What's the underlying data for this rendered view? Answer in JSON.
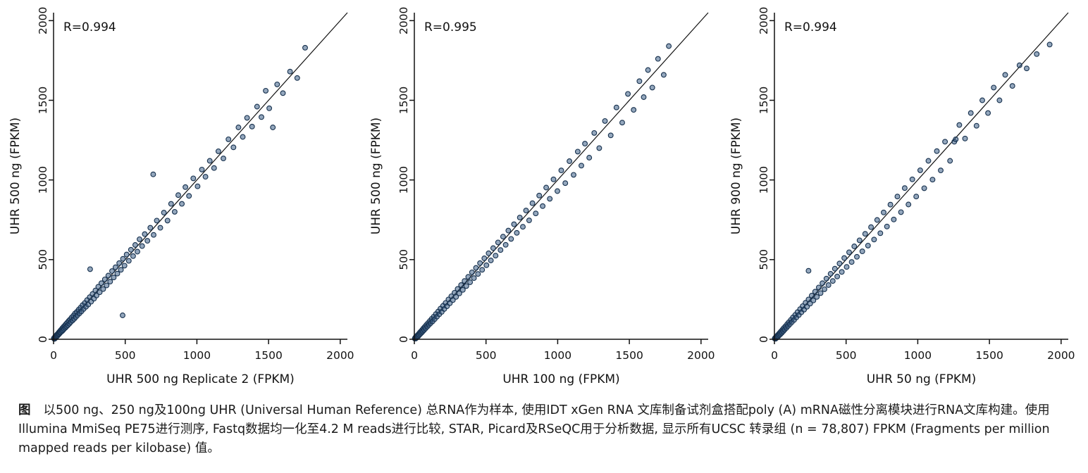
{
  "theme": {
    "point_fill": "#3c5f86",
    "point_stroke": "#16304d",
    "axis_color": "#111111",
    "background": "#ffffff"
  },
  "caption": {
    "label": "图",
    "text": "以500 ng、250 ng及100ng UHR (Universal Human Reference) 总RNA作为样本, 使用IDT xGen RNA 文库制备试剂盒搭配poly (A) mRNA磁性分离模块进行RNA文库构建。使用Illumina MmiSeq PE75进行测序, Fastq数据均一化至4.2 M reads进行比较, STAR, Picard及RSeQC用于分析数据, 显示所有UCSC 转录组 (n = 78,807) FPKM (Fragments per million mapped reads per kilobase) 值。"
  },
  "chart_data": [
    {
      "type": "scatter",
      "r_label": "R=0.994",
      "xlabel": "UHR 500 ng Replicate 2 (FPKM)",
      "ylabel": "UHR 500 ng (FPKM)",
      "xlim": [
        0,
        2050
      ],
      "ylim": [
        0,
        2050
      ],
      "ticks": [
        0,
        500,
        1000,
        1500,
        2000
      ],
      "diagonal": true,
      "points": [
        [
          2,
          6
        ],
        [
          5,
          2
        ],
        [
          8,
          12
        ],
        [
          10,
          5
        ],
        [
          12,
          18
        ],
        [
          15,
          10
        ],
        [
          18,
          22
        ],
        [
          20,
          15
        ],
        [
          22,
          28
        ],
        [
          25,
          20
        ],
        [
          28,
          33
        ],
        [
          30,
          24
        ],
        [
          33,
          38
        ],
        [
          35,
          30
        ],
        [
          38,
          44
        ],
        [
          40,
          34
        ],
        [
          43,
          48
        ],
        [
          45,
          40
        ],
        [
          48,
          55
        ],
        [
          50,
          44
        ],
        [
          55,
          62
        ],
        [
          58,
          50
        ],
        [
          62,
          70
        ],
        [
          65,
          56
        ],
        [
          70,
          78
        ],
        [
          73,
          64
        ],
        [
          78,
          86
        ],
        [
          82,
          72
        ],
        [
          86,
          95
        ],
        [
          90,
          80
        ],
        [
          95,
          104
        ],
        [
          100,
          88
        ],
        [
          105,
          115
        ],
        [
          110,
          98
        ],
        [
          115,
          124
        ],
        [
          120,
          108
        ],
        [
          126,
          136
        ],
        [
          132,
          118
        ],
        [
          138,
          148
        ],
        [
          144,
          128
        ],
        [
          150,
          162
        ],
        [
          156,
          140
        ],
        [
          162,
          172
        ],
        [
          168,
          152
        ],
        [
          175,
          186
        ],
        [
          182,
          164
        ],
        [
          188,
          198
        ],
        [
          195,
          176
        ],
        [
          202,
          214
        ],
        [
          210,
          190
        ],
        [
          218,
          228
        ],
        [
          226,
          204
        ],
        [
          234,
          246
        ],
        [
          242,
          218
        ],
        [
          252,
          264
        ],
        [
          262,
          236
        ],
        [
          272,
          284
        ],
        [
          282,
          255
        ],
        [
          292,
          306
        ],
        [
          300,
          275
        ],
        [
          255,
          440
        ],
        [
          312,
          330
        ],
        [
          322,
          295
        ],
        [
          334,
          352
        ],
        [
          346,
          315
        ],
        [
          358,
          376
        ],
        [
          370,
          338
        ],
        [
          382,
          400
        ],
        [
          395,
          362
        ],
        [
          408,
          428
        ],
        [
          420,
          388
        ],
        [
          432,
          452
        ],
        [
          445,
          412
        ],
        [
          458,
          478
        ],
        [
          470,
          436
        ],
        [
          482,
          150
        ],
        [
          484,
          505
        ],
        [
          495,
          462
        ],
        [
          510,
          532
        ],
        [
          525,
          492
        ],
        [
          540,
          562
        ],
        [
          555,
          522
        ],
        [
          570,
          592
        ],
        [
          585,
          550
        ],
        [
          600,
          628
        ],
        [
          618,
          585
        ],
        [
          636,
          660
        ],
        [
          655,
          618
        ],
        [
          675,
          700
        ],
        [
          695,
          1035
        ],
        [
          698,
          655
        ],
        [
          720,
          745
        ],
        [
          745,
          700
        ],
        [
          770,
          795
        ],
        [
          795,
          745
        ],
        [
          820,
          850
        ],
        [
          845,
          800
        ],
        [
          870,
          905
        ],
        [
          895,
          850
        ],
        [
          920,
          955
        ],
        [
          945,
          900
        ],
        [
          975,
          1010
        ],
        [
          1005,
          960
        ],
        [
          1035,
          1065
        ],
        [
          1060,
          1020
        ],
        [
          1090,
          1120
        ],
        [
          1120,
          1075
        ],
        [
          1150,
          1180
        ],
        [
          1185,
          1135
        ],
        [
          1220,
          1255
        ],
        [
          1255,
          1205
        ],
        [
          1290,
          1330
        ],
        [
          1320,
          1270
        ],
        [
          1350,
          1390
        ],
        [
          1385,
          1335
        ],
        [
          1420,
          1460
        ],
        [
          1450,
          1395
        ],
        [
          1480,
          1560
        ],
        [
          1505,
          1450
        ],
        [
          1530,
          1330
        ],
        [
          1560,
          1600
        ],
        [
          1600,
          1545
        ],
        [
          1650,
          1680
        ],
        [
          1700,
          1640
        ],
        [
          1755,
          1830
        ]
      ]
    },
    {
      "type": "scatter",
      "r_label": "R=0.995",
      "xlabel": "UHR 100 ng (FPKM)",
      "ylabel": "UHR 500 ng (FPKM)",
      "xlim": [
        0,
        2050
      ],
      "ylim": [
        0,
        2050
      ],
      "ticks": [
        0,
        500,
        1000,
        1500,
        2000
      ],
      "diagonal": true,
      "points": [
        [
          3,
          5
        ],
        [
          6,
          10
        ],
        [
          9,
          4
        ],
        [
          12,
          16
        ],
        [
          15,
          9
        ],
        [
          18,
          22
        ],
        [
          21,
          14
        ],
        [
          24,
          27
        ],
        [
          27,
          19
        ],
        [
          30,
          33
        ],
        [
          34,
          26
        ],
        [
          38,
          42
        ],
        [
          42,
          33
        ],
        [
          46,
          50
        ],
        [
          50,
          41
        ],
        [
          54,
          58
        ],
        [
          58,
          49
        ],
        [
          63,
          68
        ],
        [
          68,
          58
        ],
        [
          73,
          78
        ],
        [
          78,
          68
        ],
        [
          84,
          90
        ],
        [
          90,
          79
        ],
        [
          96,
          102
        ],
        [
          102,
          90
        ],
        [
          108,
          115
        ],
        [
          114,
          101
        ],
        [
          121,
          128
        ],
        [
          128,
          113
        ],
        [
          135,
          142
        ],
        [
          142,
          127
        ],
        [
          150,
          158
        ],
        [
          158,
          142
        ],
        [
          166,
          174
        ],
        [
          174,
          157
        ],
        [
          182,
          192
        ],
        [
          191,
          172
        ],
        [
          200,
          210
        ],
        [
          209,
          190
        ],
        [
          218,
          228
        ],
        [
          228,
          207
        ],
        [
          238,
          250
        ],
        [
          248,
          226
        ],
        [
          258,
          270
        ],
        [
          269,
          246
        ],
        [
          280,
          292
        ],
        [
          291,
          266
        ],
        [
          302,
          316
        ],
        [
          314,
          288
        ],
        [
          326,
          340
        ],
        [
          338,
          310
        ],
        [
          350,
          366
        ],
        [
          363,
          334
        ],
        [
          376,
          392
        ],
        [
          389,
          358
        ],
        [
          402,
          420
        ],
        [
          416,
          384
        ],
        [
          430,
          448
        ],
        [
          444,
          410
        ],
        [
          458,
          478
        ],
        [
          473,
          436
        ],
        [
          488,
          508
        ],
        [
          503,
          465
        ],
        [
          518,
          540
        ],
        [
          534,
          495
        ],
        [
          550,
          572
        ],
        [
          567,
          525
        ],
        [
          584,
          608
        ],
        [
          601,
          560
        ],
        [
          619,
          644
        ],
        [
          637,
          593
        ],
        [
          656,
          682
        ],
        [
          675,
          630
        ],
        [
          695,
          722
        ],
        [
          715,
          668
        ],
        [
          736,
          764
        ],
        [
          757,
          706
        ],
        [
          779,
          808
        ],
        [
          801,
          746
        ],
        [
          824,
          854
        ],
        [
          847,
          790
        ],
        [
          871,
          902
        ],
        [
          895,
          836
        ],
        [
          920,
          952
        ],
        [
          945,
          882
        ],
        [
          971,
          1004
        ],
        [
          998,
          930
        ],
        [
          1025,
          1060
        ],
        [
          1053,
          980
        ],
        [
          1082,
          1118
        ],
        [
          1111,
          1032
        ],
        [
          1140,
          1178
        ],
        [
          1165,
          1090
        ],
        [
          1190,
          1228
        ],
        [
          1220,
          1140
        ],
        [
          1255,
          1295
        ],
        [
          1290,
          1200
        ],
        [
          1330,
          1370
        ],
        [
          1370,
          1280
        ],
        [
          1410,
          1455
        ],
        [
          1450,
          1360
        ],
        [
          1490,
          1540
        ],
        [
          1530,
          1440
        ],
        [
          1570,
          1620
        ],
        [
          1600,
          1520
        ],
        [
          1630,
          1690
        ],
        [
          1660,
          1580
        ],
        [
          1700,
          1760
        ],
        [
          1740,
          1660
        ],
        [
          1775,
          1840
        ]
      ]
    },
    {
      "type": "scatter",
      "r_label": "R=0.994",
      "xlabel": "UHR 50 ng (FPKM)",
      "ylabel": "UHR 900 ng (FPKM)",
      "xlim": [
        0,
        2050
      ],
      "ylim": [
        0,
        2050
      ],
      "ticks": [
        0,
        500,
        1000,
        1500,
        2000
      ],
      "diagonal": true,
      "points": [
        [
          2,
          5
        ],
        [
          5,
          9
        ],
        [
          8,
          3
        ],
        [
          11,
          14
        ],
        [
          14,
          8
        ],
        [
          17,
          20
        ],
        [
          20,
          13
        ],
        [
          23,
          26
        ],
        [
          26,
          18
        ],
        [
          30,
          33
        ],
        [
          34,
          25
        ],
        [
          38,
          41
        ],
        [
          42,
          32
        ],
        [
          46,
          50
        ],
        [
          51,
          40
        ],
        [
          56,
          60
        ],
        [
          61,
          50
        ],
        [
          66,
          71
        ],
        [
          71,
          60
        ],
        [
          77,
          82
        ],
        [
          83,
          71
        ],
        [
          89,
          95
        ],
        [
          95,
          83
        ],
        [
          101,
          107
        ],
        [
          108,
          95
        ],
        [
          115,
          122
        ],
        [
          122,
          108
        ],
        [
          129,
          137
        ],
        [
          137,
          121
        ],
        [
          145,
          153
        ],
        [
          153,
          137
        ],
        [
          161,
          170
        ],
        [
          170,
          152
        ],
        [
          179,
          189
        ],
        [
          188,
          169
        ],
        [
          197,
          208
        ],
        [
          207,
          186
        ],
        [
          217,
          229
        ],
        [
          227,
          204
        ],
        [
          238,
          430
        ],
        [
          238,
          250
        ],
        [
          249,
          224
        ],
        [
          260,
          274
        ],
        [
          272,
          244
        ],
        [
          284,
          299
        ],
        [
          296,
          266
        ],
        [
          309,
          325
        ],
        [
          322,
          290
        ],
        [
          335,
          352
        ],
        [
          349,
          314
        ],
        [
          363,
          381
        ],
        [
          377,
          340
        ],
        [
          392,
          411
        ],
        [
          407,
          366
        ],
        [
          422,
          443
        ],
        [
          438,
          394
        ],
        [
          454,
          476
        ],
        [
          470,
          423
        ],
        [
          487,
          510
        ],
        [
          504,
          454
        ],
        [
          521,
          546
        ],
        [
          539,
          485
        ],
        [
          557,
          583
        ],
        [
          575,
          518
        ],
        [
          594,
          621
        ],
        [
          613,
          552
        ],
        [
          633,
          662
        ],
        [
          653,
          588
        ],
        [
          674,
          704
        ],
        [
          695,
          626
        ],
        [
          717,
          749
        ],
        [
          739,
          666
        ],
        [
          762,
          796
        ],
        [
          785,
          708
        ],
        [
          809,
          845
        ],
        [
          833,
          752
        ],
        [
          858,
          896
        ],
        [
          883,
          798
        ],
        [
          909,
          949
        ],
        [
          935,
          846
        ],
        [
          962,
          1004
        ],
        [
          989,
          896
        ],
        [
          1017,
          1061
        ],
        [
          1045,
          948
        ],
        [
          1074,
          1120
        ],
        [
          1103,
          1002
        ],
        [
          1133,
          1181
        ],
        [
          1160,
          1060
        ],
        [
          1190,
          1240
        ],
        [
          1225,
          1120
        ],
        [
          1255,
          1240
        ],
        [
          1265,
          1255
        ],
        [
          1290,
          1345
        ],
        [
          1330,
          1260
        ],
        [
          1370,
          1420
        ],
        [
          1410,
          1340
        ],
        [
          1450,
          1500
        ],
        [
          1490,
          1420
        ],
        [
          1530,
          1580
        ],
        [
          1570,
          1500
        ],
        [
          1610,
          1660
        ],
        [
          1660,
          1590
        ],
        [
          1710,
          1720
        ],
        [
          1760,
          1700
        ],
        [
          1830,
          1790
        ],
        [
          1920,
          1850
        ]
      ]
    }
  ]
}
